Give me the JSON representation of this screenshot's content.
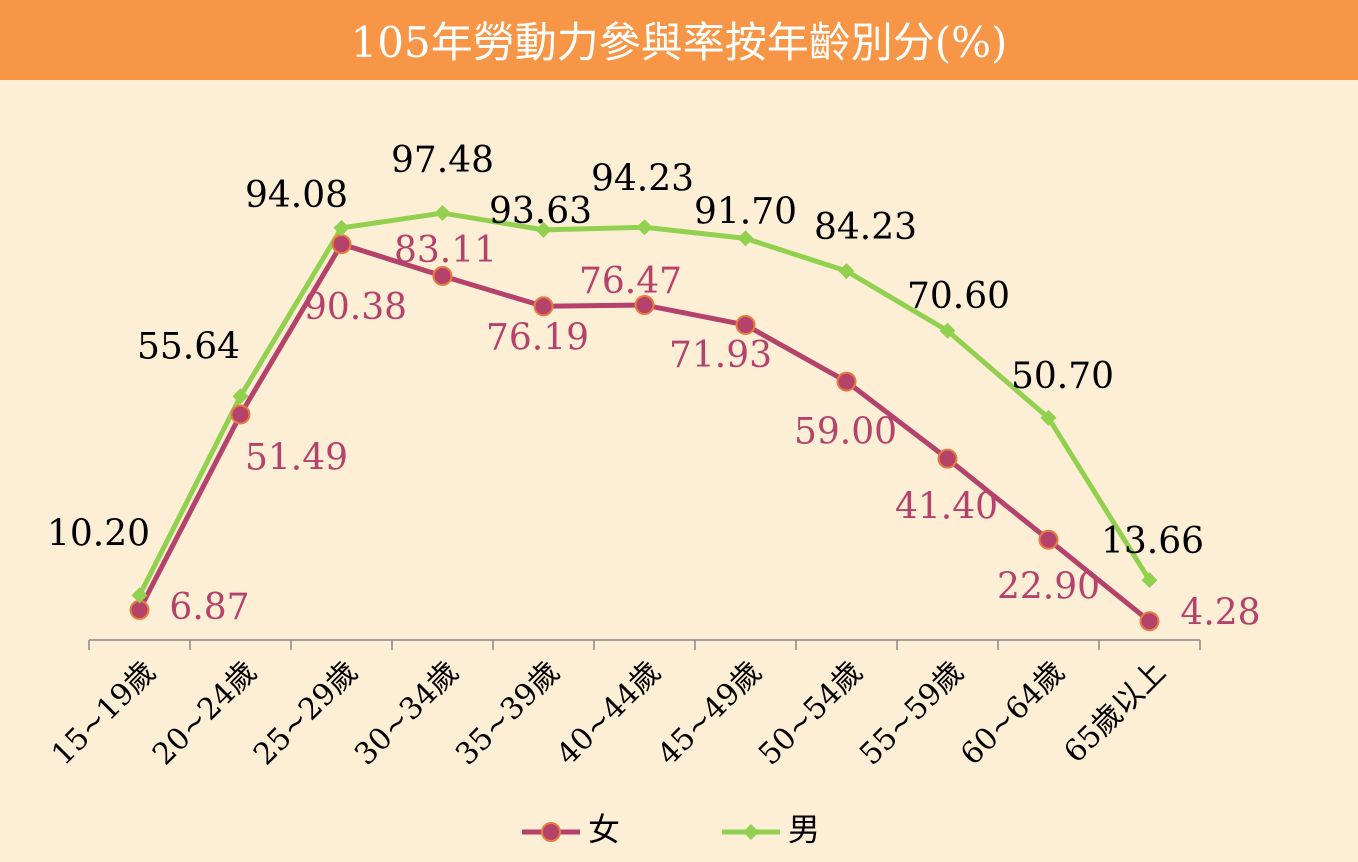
{
  "chart_data": {
    "type": "line",
    "title": "105年勞動力參與率按年齡別分(%)",
    "categories": [
      "15~19歲",
      "20~24歲",
      "25~29歲",
      "30~34歲",
      "35~39歲",
      "40~44歲",
      "45~49歲",
      "50~54歲",
      "55~59歲",
      "60~64歲",
      "65歲以上"
    ],
    "series": [
      {
        "name": "女",
        "color": "#b5426b",
        "values": [
          6.87,
          51.49,
          90.38,
          83.11,
          76.19,
          76.47,
          71.93,
          59,
          41.4,
          22.9,
          4.28
        ],
        "value_labels": [
          "6.87",
          "51.49",
          "90.38",
          "83.11",
          "76.19",
          "76.47",
          "71.93",
          "59.00",
          "41.40",
          "22.90",
          "4.28"
        ]
      },
      {
        "name": "男",
        "color": "#92d050",
        "values": [
          10.2,
          55.64,
          94.08,
          97.48,
          93.63,
          94.23,
          91.7,
          84.23,
          70.6,
          50.7,
          13.66
        ],
        "value_labels": [
          "10.20",
          "55.64",
          "94.08",
          "97.48",
          "93.63",
          "94.23",
          "91.70",
          "84.23",
          "70.60",
          "50.70",
          "13.66"
        ]
      }
    ],
    "ylim": [
      0,
      100
    ],
    "grid": false,
    "legend": "bottom"
  }
}
